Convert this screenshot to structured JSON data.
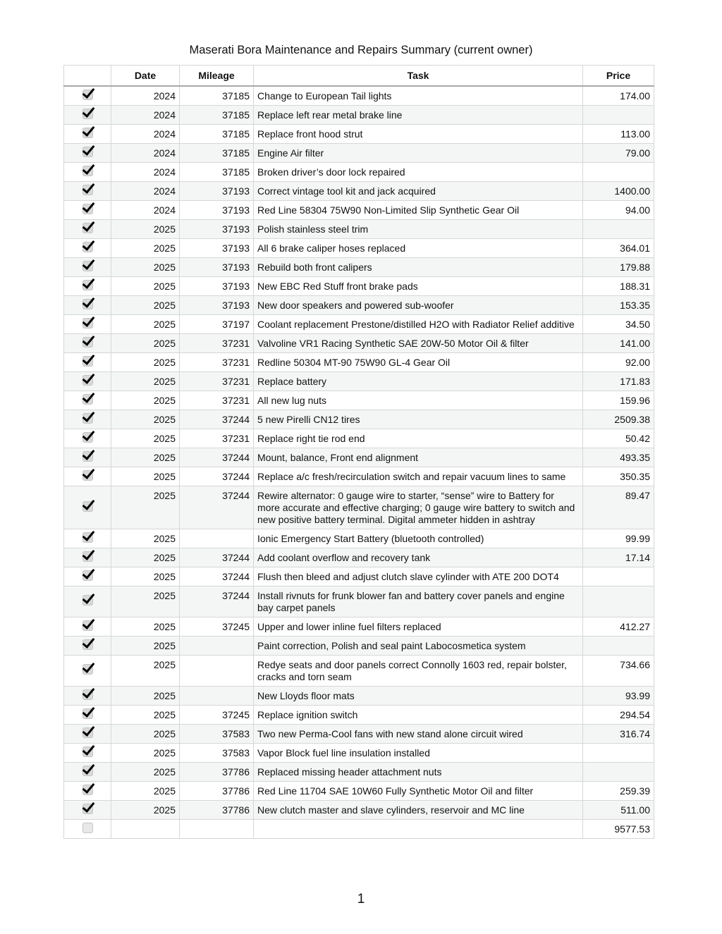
{
  "title": "Maserati Bora Maintenance and Repairs Summary (current owner)",
  "columns": [
    "",
    "Date",
    "Mileage",
    "Task",
    "Price"
  ],
  "rows": [
    {
      "checked": true,
      "date": "2024",
      "mileage": "37185",
      "task": "Change to European Tail lights",
      "price": "174.00"
    },
    {
      "checked": true,
      "date": "2024",
      "mileage": "37185",
      "task": "Replace left rear metal brake line",
      "price": ""
    },
    {
      "checked": true,
      "date": "2024",
      "mileage": "37185",
      "task": "Replace front hood strut",
      "price": "113.00"
    },
    {
      "checked": true,
      "date": "2024",
      "mileage": "37185",
      "task": "Engine Air filter",
      "price": "79.00"
    },
    {
      "checked": true,
      "date": "2024",
      "mileage": "37185",
      "task": "Broken driver’s door lock repaired",
      "price": ""
    },
    {
      "checked": true,
      "date": "2024",
      "mileage": "37193",
      "task": "Correct vintage tool kit and jack acquired",
      "price": "1400.00"
    },
    {
      "checked": true,
      "date": "2024",
      "mileage": "37193",
      "task": "Red Line 58304 75W90 Non-Limited Slip Synthetic Gear Oil",
      "price": "94.00"
    },
    {
      "checked": true,
      "date": "2025",
      "mileage": "37193",
      "task": "Polish stainless steel trim",
      "price": ""
    },
    {
      "checked": true,
      "date": "2025",
      "mileage": "37193",
      "task": "All 6 brake caliper hoses replaced",
      "price": "364.01"
    },
    {
      "checked": true,
      "date": "2025",
      "mileage": "37193",
      "task": "Rebuild both front calipers",
      "price": "179.88"
    },
    {
      "checked": true,
      "date": "2025",
      "mileage": "37193",
      "task": "New EBC Red Stuff front brake pads",
      "price": "188.31"
    },
    {
      "checked": true,
      "date": "2025",
      "mileage": "37193",
      "task": "New door speakers and powered sub-woofer",
      "price": "153.35"
    },
    {
      "checked": true,
      "date": "2025",
      "mileage": "37197",
      "task": "Coolant replacement Prestone/distilled H2O with Radiator Relief additive",
      "price": "34.50"
    },
    {
      "checked": true,
      "date": "2025",
      "mileage": "37231",
      "task": "Valvoline VR1 Racing Synthetic SAE 20W-50 Motor Oil & filter",
      "price": "141.00"
    },
    {
      "checked": true,
      "date": "2025",
      "mileage": "37231",
      "task": "Redline 50304 MT-90 75W90 GL-4 Gear Oil",
      "price": "92.00"
    },
    {
      "checked": true,
      "date": "2025",
      "mileage": "37231",
      "task": "Replace battery",
      "price": "171.83"
    },
    {
      "checked": true,
      "date": "2025",
      "mileage": "37231",
      "task": "All new lug nuts",
      "price": "159.96"
    },
    {
      "checked": true,
      "date": "2025",
      "mileage": "37244",
      "task": "5 new Pirelli CN12 tires",
      "price": "2509.38"
    },
    {
      "checked": true,
      "date": "2025",
      "mileage": "37231",
      "task": "Replace right tie rod end",
      "price": "50.42"
    },
    {
      "checked": true,
      "date": "2025",
      "mileage": "37244",
      "task": "Mount, balance, Front end alignment",
      "price": "493.35"
    },
    {
      "checked": true,
      "date": "2025",
      "mileage": "37244",
      "task": "Replace a/c fresh/recirculation switch and repair vacuum lines to same",
      "price": "350.35"
    },
    {
      "checked": true,
      "date": "2025",
      "mileage": "37244",
      "task": "Rewire alternator: 0 gauge wire to starter, “sense” wire to Battery for more accurate and effective charging; 0 gauge wire battery to switch and new positive battery terminal. Digital ammeter hidden in ashtray",
      "price": "89.47"
    },
    {
      "checked": true,
      "date": "2025",
      "mileage": "",
      "task": "Ionic Emergency Start Battery (bluetooth controlled)",
      "price": "99.99"
    },
    {
      "checked": true,
      "date": "2025",
      "mileage": "37244",
      "task": "Add coolant overflow and recovery tank",
      "price": "17.14"
    },
    {
      "checked": true,
      "date": "2025",
      "mileage": "37244",
      "task": "Flush then bleed and adjust clutch slave cylinder with ATE 200 DOT4",
      "price": ""
    },
    {
      "checked": true,
      "date": "2025",
      "mileage": "37244",
      "task": "Install rivnuts for frunk blower fan and battery cover panels and engine bay carpet panels",
      "price": ""
    },
    {
      "checked": true,
      "date": "2025",
      "mileage": "37245",
      "task": "Upper and lower inline fuel filters replaced",
      "price": "412.27"
    },
    {
      "checked": true,
      "date": "2025",
      "mileage": "",
      "task": "Paint correction, Polish and seal paint Labocosmetica system",
      "price": ""
    },
    {
      "checked": true,
      "date": "2025",
      "mileage": "",
      "task": "Redye seats and door panels correct Connolly 1603 red, repair bolster, cracks and torn seam",
      "price": "734.66"
    },
    {
      "checked": true,
      "date": "2025",
      "mileage": "",
      "task": "New Lloyds floor mats",
      "price": "93.99"
    },
    {
      "checked": true,
      "date": "2025",
      "mileage": "37245",
      "task": "Replace ignition switch",
      "price": "294.54"
    },
    {
      "checked": true,
      "date": "2025",
      "mileage": "37583",
      "task": "Two new Perma-Cool fans with new stand alone circuit wired",
      "price": "316.74"
    },
    {
      "checked": true,
      "date": "2025",
      "mileage": "37583",
      "task": "Vapor Block fuel line insulation installed",
      "price": ""
    },
    {
      "checked": true,
      "date": "2025",
      "mileage": "37786",
      "task": "Replaced missing header attachment nuts",
      "price": ""
    },
    {
      "checked": true,
      "date": "2025",
      "mileage": "37786",
      "task": "Red Line 11704 SAE 10W60 Fully Synthetic Motor Oil and filter",
      "price": "259.39"
    },
    {
      "checked": true,
      "date": "2025",
      "mileage": "37786",
      "task": "New clutch master and slave cylinders, reservoir and MC line",
      "price": "511.00"
    }
  ],
  "total": {
    "checked": false,
    "price": "9577.53"
  },
  "page_number": "1"
}
